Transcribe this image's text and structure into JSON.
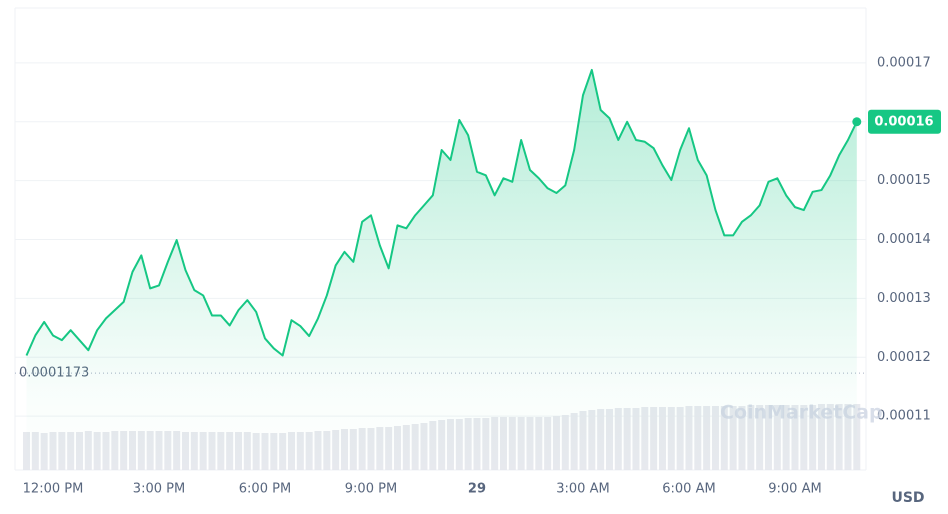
{
  "chart_data": {
    "type": "line",
    "categories": [
      null,
      null,
      null,
      "12:00 PM",
      null,
      null,
      null,
      null,
      null,
      null,
      null,
      null,
      null,
      null,
      null,
      "3:00 PM",
      null,
      null,
      null,
      null,
      null,
      null,
      null,
      null,
      null,
      null,
      null,
      "6:00 PM",
      null,
      null,
      null,
      null,
      null,
      null,
      null,
      null,
      null,
      null,
      null,
      "9:00 PM",
      null,
      null,
      null,
      null,
      null,
      null,
      null,
      null,
      null,
      null,
      null,
      "29",
      null,
      null,
      null,
      null,
      null,
      null,
      null,
      null,
      null,
      null,
      null,
      "3:00 AM",
      null,
      null,
      null,
      null,
      null,
      null,
      null,
      null,
      null,
      null,
      null,
      "6:00 AM",
      null,
      null,
      null,
      null,
      null,
      null,
      null,
      null,
      null,
      null,
      null,
      "9:00 AM",
      null,
      null,
      null,
      null,
      null,
      null,
      null
    ],
    "series": [
      {
        "color": "#16c784",
        "values": [
          0.0001203,
          0.0001237,
          0.000126,
          0.0001237,
          0.0001229,
          0.0001246,
          0.0001229,
          0.0001212,
          0.0001246,
          0.0001266,
          0.000128,
          0.0001294,
          0.0001345,
          0.0001373,
          0.0001317,
          0.0001322,
          0.0001362,
          0.0001399,
          0.0001348,
          0.0001314,
          0.0001305,
          0.0001271,
          0.0001271,
          0.0001254,
          0.000128,
          0.0001297,
          0.0001277,
          0.0001232,
          0.0001215,
          0.0001203,
          0.0001263,
          0.0001253,
          0.0001236,
          0.0001266,
          0.0001305,
          0.0001356,
          0.0001379,
          0.0001362,
          0.000143,
          0.0001441,
          0.000139,
          0.0001351,
          0.0001424,
          0.0001419,
          0.0001441,
          0.0001458,
          0.0001475,
          0.0001552,
          0.0001535,
          0.0001603,
          0.0001577,
          0.0001515,
          0.0001509,
          0.0001475,
          0.0001504,
          0.0001498,
          0.0001569,
          0.0001518,
          0.0001504,
          0.0001487,
          0.0001479,
          0.0001492,
          0.0001552,
          0.0001645,
          0.0001688,
          0.000162,
          0.0001606,
          0.0001569,
          0.00016,
          0.0001569,
          0.0001566,
          0.0001555,
          0.0001526,
          0.0001501,
          0.0001552,
          0.0001589,
          0.0001535,
          0.0001509,
          0.000145,
          0.0001407,
          0.0001407,
          0.000143,
          0.0001441,
          0.0001458,
          0.0001498,
          0.0001504,
          0.0001475,
          0.0001455,
          0.000145,
          0.0001481,
          0.0001484,
          0.0001509,
          0.0001543,
          0.0001569,
          0.00016
        ]
      }
    ],
    "volume": [
      38,
      38,
      37,
      38,
      38,
      38,
      38,
      39,
      38,
      38,
      39,
      39,
      39,
      39,
      39,
      39,
      39,
      39,
      38,
      38,
      38,
      38,
      38,
      38,
      38,
      38,
      37,
      37,
      37,
      37,
      38,
      38,
      38,
      39,
      39,
      40,
      41,
      41,
      42,
      42,
      43,
      43,
      44,
      45,
      46,
      47,
      49,
      50,
      51,
      51,
      52,
      52,
      52,
      53,
      53,
      53,
      53,
      53,
      53,
      53,
      54,
      55,
      57,
      59,
      60,
      61,
      61,
      62,
      62,
      62,
      63,
      63,
      63,
      63,
      63,
      64,
      64,
      64,
      64,
      64,
      64,
      64,
      65,
      65,
      65,
      65,
      65,
      65,
      65,
      65,
      66,
      66,
      66,
      66,
      66
    ],
    "ylim": [
      0.0001,
      0.00018
    ],
    "yticks": [
      0.00011,
      0.00012,
      0.00013,
      0.00014,
      0.00015,
      0.00016,
      0.00017
    ],
    "baseline": 0.0001173,
    "grid": true,
    "currency": "USD",
    "watermark": "CoinMarketCap"
  }
}
